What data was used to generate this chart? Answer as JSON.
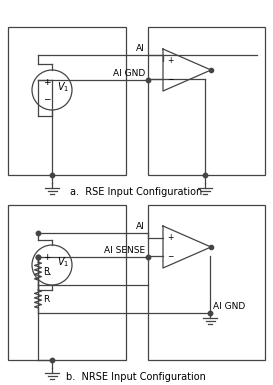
{
  "background_color": "#ffffff",
  "line_color": "#444444",
  "text_color": "#000000",
  "title_a": "a.  RSE Input Configuration",
  "title_b": "b.  NRSE Input Configuration",
  "label_AI": "AI",
  "label_AIGND": "AI GND",
  "label_AISENSE": "AI SENSE",
  "label_R1": "R",
  "label_R2": "R",
  "font_size_label": 6.5,
  "font_size_title": 7.0
}
